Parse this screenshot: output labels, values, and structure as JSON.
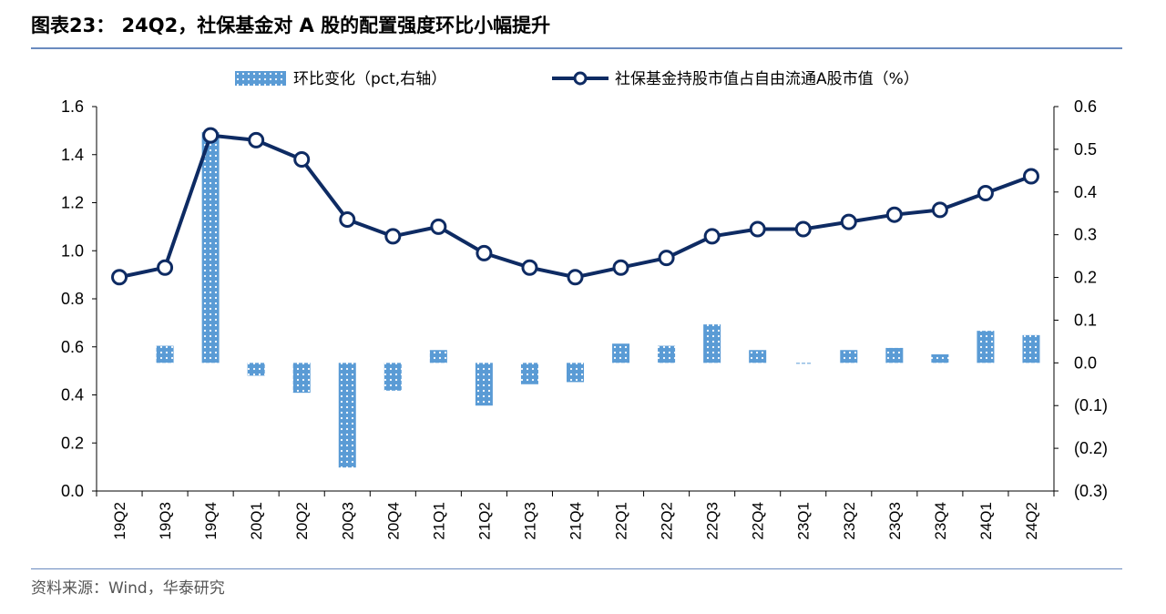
{
  "header": {
    "title": "图表23：  24Q2，社保基金对 A 股的配置强度环比小幅提升"
  },
  "footer": {
    "source": "资料来源：Wind，华泰研究"
  },
  "colors": {
    "line": "#0e2b63",
    "bar": "#5a9bd5",
    "rule": "#6a8bbf"
  },
  "chart_data": {
    "type": "bar+line",
    "categories": [
      "19Q2",
      "19Q3",
      "19Q4",
      "20Q1",
      "20Q2",
      "20Q3",
      "20Q4",
      "21Q1",
      "21Q2",
      "21Q3",
      "21Q4",
      "22Q1",
      "22Q2",
      "22Q3",
      "22Q4",
      "23Q1",
      "23Q2",
      "23Q3",
      "23Q4",
      "24Q1",
      "24Q2"
    ],
    "series": [
      {
        "name": "环比变化（pct,右轴）",
        "type": "bar",
        "axis": "right",
        "values": [
          null,
          0.04,
          0.54,
          -0.03,
          -0.07,
          -0.245,
          -0.065,
          0.03,
          -0.1,
          -0.05,
          -0.045,
          0.045,
          0.04,
          0.09,
          0.03,
          -0.002,
          0.03,
          0.035,
          0.02,
          0.075,
          0.065
        ]
      },
      {
        "name": "社保基金持股市值占自由流通A股市值（%）",
        "type": "line",
        "axis": "left",
        "values": [
          0.89,
          0.93,
          1.48,
          1.46,
          1.38,
          1.13,
          1.06,
          1.1,
          0.99,
          0.93,
          0.89,
          0.93,
          0.97,
          1.06,
          1.09,
          1.09,
          1.12,
          1.15,
          1.17,
          1.24,
          1.31
        ]
      }
    ],
    "left_axis": {
      "ylim": [
        0,
        1.6
      ],
      "ticks": [
        "0.0",
        "0.2",
        "0.4",
        "0.6",
        "0.8",
        "1.0",
        "1.2",
        "1.4",
        "1.6"
      ]
    },
    "right_axis": {
      "ylim": [
        -0.3,
        0.6
      ],
      "ticks": [
        "(0.3)",
        "(0.2)",
        "(0.1)",
        "0.0",
        "0.1",
        "0.2",
        "0.3",
        "0.4",
        "0.5",
        "0.6"
      ]
    },
    "legend_position": "top-center",
    "grid": false
  }
}
